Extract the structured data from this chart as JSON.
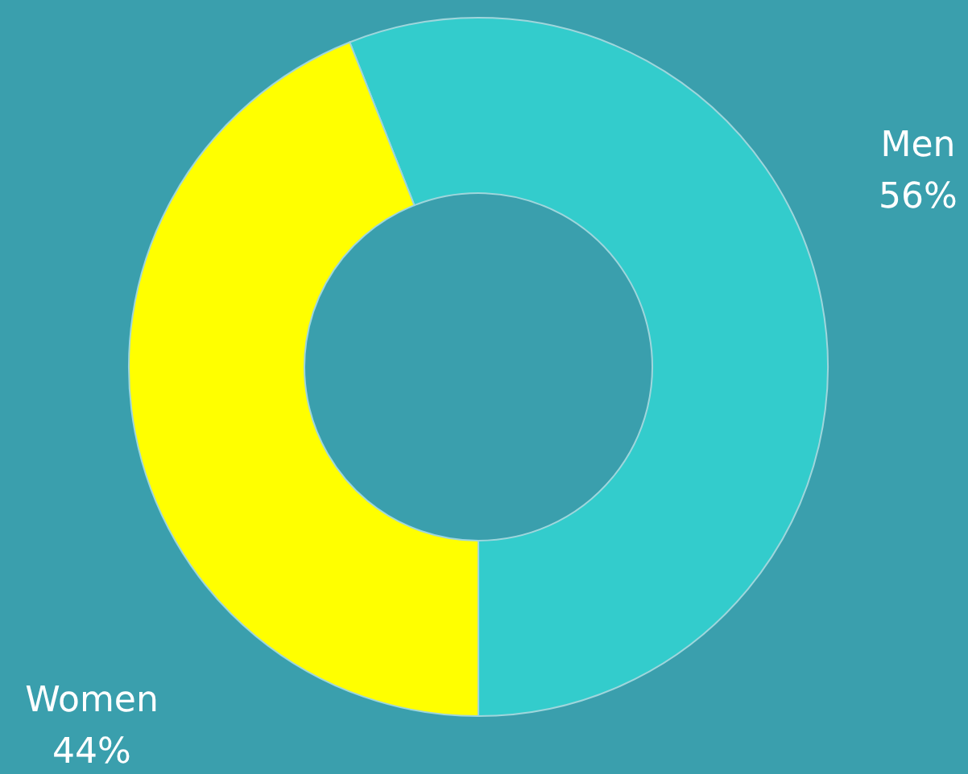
{
  "chart_data": {
    "type": "donut",
    "categories": [
      "Men",
      "Women"
    ],
    "values": [
      56,
      44
    ],
    "colors": [
      "#33cccc",
      "#ffff00"
    ],
    "value_labels": [
      "56%",
      "44%"
    ],
    "legend": false
  }
}
